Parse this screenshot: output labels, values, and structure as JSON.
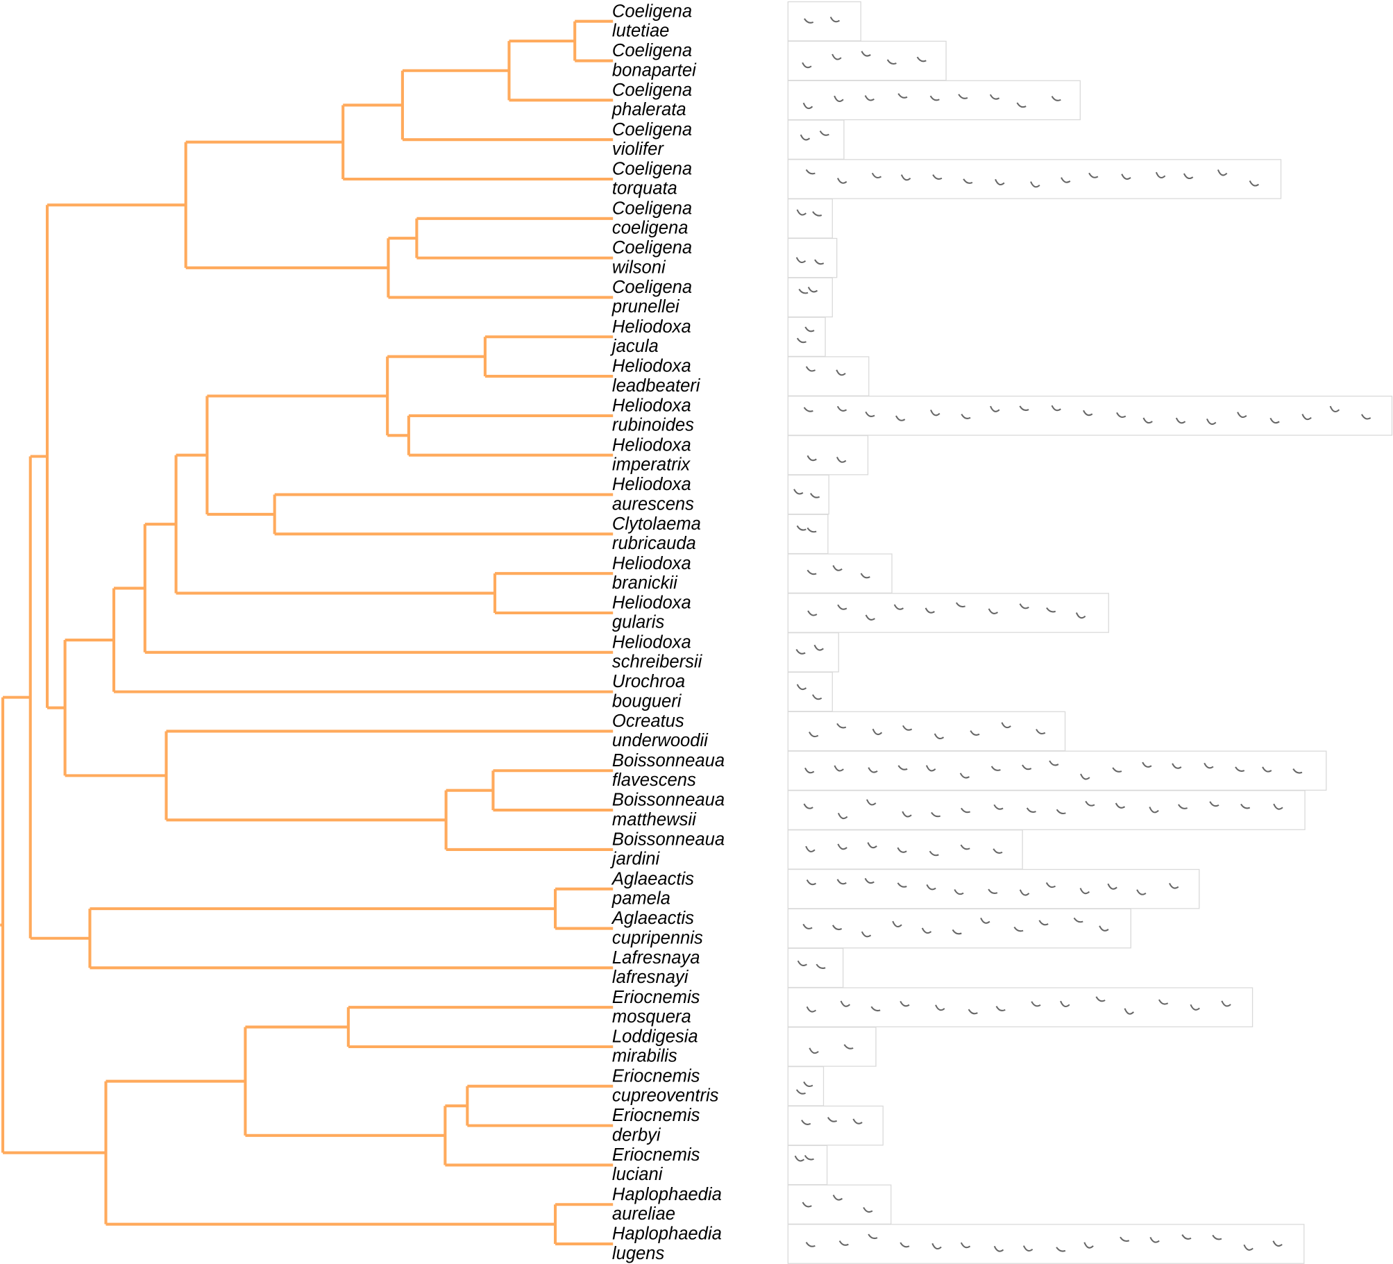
{
  "colors": {
    "branch": "#FFAA5C",
    "spectrogram_ink": "#333333",
    "box_border": "#d9d9d9"
  },
  "taxa": [
    {
      "genus": "Coeligena",
      "species": "lutetiae"
    },
    {
      "genus": "Coeligena",
      "species": "bonapartei"
    },
    {
      "genus": "Coeligena",
      "species": "phalerata"
    },
    {
      "genus": "Coeligena",
      "species": "violifer"
    },
    {
      "genus": "Coeligena",
      "species": "torquata"
    },
    {
      "genus": "Coeligena",
      "species": "coeligena"
    },
    {
      "genus": "Coeligena",
      "species": "wilsoni"
    },
    {
      "genus": "Coeligena",
      "species": "prunellei"
    },
    {
      "genus": "Heliodoxa",
      "species": "jacula"
    },
    {
      "genus": "Heliodoxa",
      "species": "leadbeateri"
    },
    {
      "genus": "Heliodoxa",
      "species": "rubinoides"
    },
    {
      "genus": "Heliodoxa",
      "species": "imperatrix"
    },
    {
      "genus": "Heliodoxa",
      "species": "aurescens"
    },
    {
      "genus": "Clytolaema",
      "species": "rubricauda"
    },
    {
      "genus": "Heliodoxa",
      "species": "branickii"
    },
    {
      "genus": "Heliodoxa",
      "species": "gularis"
    },
    {
      "genus": "Heliodoxa",
      "species": "schreibersii"
    },
    {
      "genus": "Urochroa",
      "species": "bougueri"
    },
    {
      "genus": "Ocreatus",
      "species": "underwoodii"
    },
    {
      "genus": "Boissonneaua",
      "species": "flavescens"
    },
    {
      "genus": "Boissonneaua",
      "species": "matthewsii"
    },
    {
      "genus": "Boissonneaua",
      "species": "jardini"
    },
    {
      "genus": "Aglaeactis",
      "species": "pamela"
    },
    {
      "genus": "Aglaeactis",
      "species": "cupripennis"
    },
    {
      "genus": "Lafresnaya",
      "species": "lafresnayi"
    },
    {
      "genus": "Eriocnemis",
      "species": "mosquera"
    },
    {
      "genus": "Loddigesia",
      "species": "mirabilis"
    },
    {
      "genus": "Eriocnemis",
      "species": "cupreoventris"
    },
    {
      "genus": "Eriocnemis",
      "species": "derbyi"
    },
    {
      "genus": "Eriocnemis",
      "species": "luciani"
    },
    {
      "genus": "Haplophaedia",
      "species": "aureliae"
    },
    {
      "genus": "Haplophaedia",
      "species": "lugens"
    }
  ],
  "tree": [
    [
      [
        [
          [
            [
              [
                [
                  0,
                  1
                ],
                2
              ],
              3
            ],
            4
          ],
          [
            [
              5,
              6
            ],
            7
          ]
        ],
        [
          [
            [
              [
                [
                  [
                    [
                      8,
                      9
                    ],
                    [
                      10,
                      11
                    ]
                  ],
                  [
                    12,
                    13
                  ]
                ],
                [
                  14,
                  15
                ]
              ],
              16
            ],
            17
          ],
          [
            18,
            [
              [
                19,
                20
              ],
              21
            ]
          ]
        ]
      ],
      [
        [
          22,
          23
        ],
        24
      ]
    ],
    [
      [
        [
          25,
          26
        ],
        [
          [
            27,
            28
          ],
          29
        ]
      ],
      [
        30,
        31
      ]
    ]
  ]
}
